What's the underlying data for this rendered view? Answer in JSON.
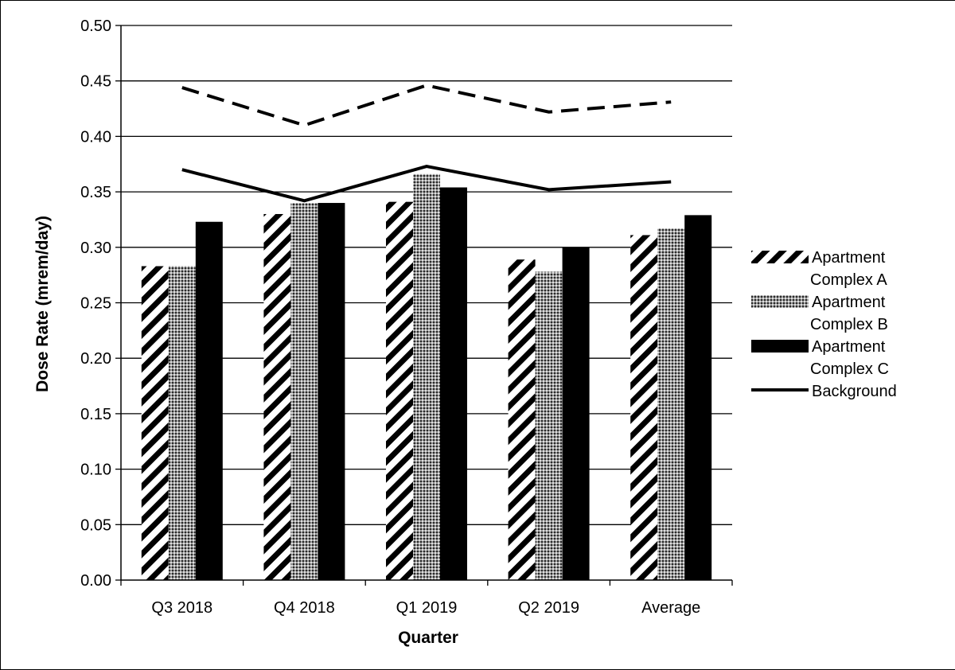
{
  "chart_data": {
    "type": "bar",
    "xlabel": "Quarter",
    "ylabel": "Dose Rate (mrem/day)",
    "ylim": [
      0,
      0.5
    ],
    "yticks": [
      "0.00",
      "0.05",
      "0.10",
      "0.15",
      "0.20",
      "0.25",
      "0.30",
      "0.35",
      "0.40",
      "0.45",
      "0.50"
    ],
    "grid": "horizontal",
    "legend_position": "right",
    "categories": [
      "Q3 2018",
      "Q4 2018",
      "Q1 2019",
      "Q2 2019",
      "Average"
    ],
    "series": [
      {
        "name": "Apartment Complex A",
        "kind": "bar",
        "pattern": "diagonal-stripes",
        "values": [
          0.283,
          0.33,
          0.341,
          0.289,
          0.311
        ]
      },
      {
        "name": "Apartment Complex B",
        "kind": "bar",
        "pattern": "crosshatch",
        "values": [
          0.283,
          0.34,
          0.366,
          0.278,
          0.317
        ]
      },
      {
        "name": "Apartment Complex C",
        "kind": "bar",
        "pattern": "solid-black",
        "values": [
          0.323,
          0.34,
          0.354,
          0.3,
          0.329
        ]
      },
      {
        "name": "Background",
        "kind": "line",
        "style": "solid",
        "values": [
          0.37,
          0.342,
          0.373,
          0.352,
          0.359
        ]
      },
      {
        "name": "",
        "kind": "line",
        "style": "dashed",
        "values": [
          0.444,
          0.41,
          0.446,
          0.422,
          0.431
        ]
      }
    ],
    "legend_lines": [
      "Apartment",
      "Complex A",
      "Apartment",
      "Complex B",
      "Apartment",
      "Complex C",
      "Background"
    ]
  }
}
